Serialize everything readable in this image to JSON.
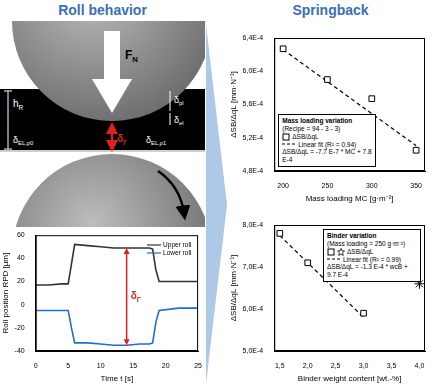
{
  "headings": {
    "left": "Roll behavior",
    "right": "Springback"
  },
  "diagram": {
    "force": {
      "text": "F",
      "sub": "N"
    },
    "roll_height": {
      "text": "h",
      "sub": "R"
    },
    "plastic": {
      "text": "δ",
      "sub": "pl"
    },
    "elastic": {
      "text": "δ",
      "sub": "el"
    },
    "el_rho0": {
      "text": "δ",
      "sub": "EL,ρ0"
    },
    "el_rho1": {
      "text": "δ",
      "sub": "EL,ρ1"
    },
    "gap": {
      "text": "δ",
      "sub": "Γ"
    }
  },
  "chart_data": [
    {
      "type": "line",
      "x_label": "Time t [s]",
      "y_label": "Roll position RPD [µm]",
      "xlim": [
        0,
        25
      ],
      "xticks": [
        0,
        5,
        10,
        15,
        20,
        25
      ],
      "ylim": [
        -40,
        60
      ],
      "yticks": [
        -40,
        -20,
        0,
        20,
        40,
        60
      ],
      "grid": false,
      "legend": "upper right",
      "gap_arrow": {
        "x": 14,
        "from": -35,
        "to": 49,
        "label": {
          "text": "δ",
          "sub": "Γ"
        }
      },
      "x": [
        0,
        2,
        4,
        5,
        5.5,
        6,
        8,
        10,
        12,
        14,
        16,
        17.5,
        18,
        18.5,
        19,
        22,
        25
      ],
      "series": [
        {
          "name": "Upper roll",
          "color": "#333333",
          "values": [
            17,
            17,
            18,
            18,
            35,
            52,
            51,
            50,
            49,
            49,
            49,
            49,
            48,
            30,
            20,
            20,
            20
          ]
        },
        {
          "name": "Lower roll",
          "color": "#1f6fd1",
          "values": [
            -5,
            -5,
            -5,
            -5,
            -20,
            -33,
            -33,
            -34,
            -35,
            -35,
            -34,
            -34,
            -33,
            -15,
            -5,
            -3,
            -3
          ]
        }
      ]
    },
    {
      "type": "scatter",
      "x_label": "Mass loading MC [g·m⁻²]",
      "y_label": "ΔSB/ΔqL [mm·N⁻¹]",
      "xlim": [
        190,
        360
      ],
      "xticks": [
        200,
        250,
        300,
        350
      ],
      "ylim": [
        0.00048,
        0.00064
      ],
      "yticks": [
        {
          "value": 0.00048,
          "label": "4,8E-4"
        },
        {
          "value": 0.00052,
          "label": "5,2E-4"
        },
        {
          "value": 0.00056,
          "label": "5,6E-4"
        },
        {
          "value": 0.0006,
          "label": "6,0E-4"
        },
        {
          "value": 0.00064,
          "label": "6,4E-4"
        }
      ],
      "grid": false,
      "legend": "lower left",
      "legend_title": "Mass loading variation",
      "legend_note": "(Recipe = 94 - 3 - 3)",
      "equation": "ΔSB/ΔqL = -7.7 E-7 * MC + 7.8 E-4",
      "series": [
        {
          "name": "ΔSB/ΔqL",
          "color": "#000000",
          "marker": "square",
          "x": [
            200,
            250,
            300,
            350
          ],
          "values": [
            0.000627,
            0.00059,
            0.000567,
            0.000505
          ]
        },
        {
          "name": "Linear fit (R² = 0.94)",
          "type": "line",
          "line_style": "dashed",
          "color": "#000000",
          "x": [
            200,
            350
          ],
          "values": [
            0.000626,
            0.0005105
          ]
        }
      ]
    },
    {
      "type": "scatter",
      "x_label": "Binder weight content [wt.-%]",
      "y_label": "ΔSB/ΔqL [mm·N⁻¹]",
      "xlim": [
        1.4,
        4.1
      ],
      "xticks": [
        {
          "value": 1.5,
          "label": "1,5"
        },
        {
          "value": 2,
          "label": "2,0"
        },
        {
          "value": 2.5,
          "label": "2,5"
        },
        {
          "value": 3,
          "label": "3,0"
        },
        {
          "value": 3.5,
          "label": "3,5"
        },
        {
          "value": 4,
          "label": "4,0"
        }
      ],
      "ylim": [
        0.0005,
        0.0008
      ],
      "yticks": [
        {
          "value": 0.0005,
          "label": "5,0E-4"
        },
        {
          "value": 0.0006,
          "label": "6,0E-4"
        },
        {
          "value": 0.0007,
          "label": "7,0E-4"
        },
        {
          "value": 0.0008,
          "label": "8,0E-4"
        }
      ],
      "grid": false,
      "legend": "upper right",
      "legend_title": "Binder variation",
      "legend_note": "(Mass loading = 250 g·m⁻²)",
      "equation": "ΔSB/ΔqL = -1.3 E-4 * wcB + 9.7 E-4",
      "series": [
        {
          "name": "ΔSB/ΔqL",
          "color": "#000000",
          "marker": "square",
          "x": [
            1.5,
            2,
            3
          ],
          "values": [
            0.00078,
            0.00071,
            0.00059
          ]
        },
        {
          "name": "ΔSB/ΔqL",
          "color": "#000000",
          "marker": "star",
          "x": [
            4
          ],
          "values": [
            0.00066
          ]
        },
        {
          "name": "Linear fit (R² = 0.99)",
          "type": "line",
          "line_style": "dashed",
          "color": "#000000",
          "x": [
            1.5,
            3
          ],
          "values": [
            0.000775,
            0.00058
          ]
        }
      ]
    }
  ]
}
